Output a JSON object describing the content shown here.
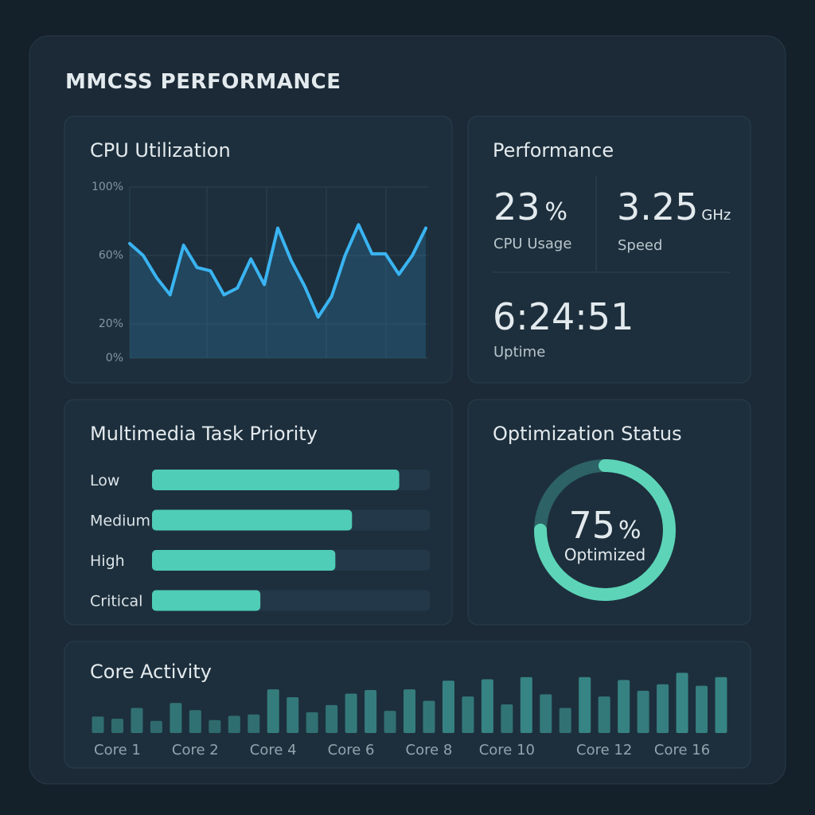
{
  "title": "MMCSS PERFORMANCE",
  "performance": {
    "title": "Performance",
    "stats": [
      {
        "value": 23,
        "unit": "%",
        "label": "CPU Usage"
      },
      {
        "value": 3.25,
        "unit": "GHz",
        "label": "Speed"
      },
      {
        "value": "6:24:51",
        "label": "Uptime"
      }
    ]
  },
  "chart_data": [
    {
      "type": "line",
      "title": "CPU Utilization",
      "values": [
        67,
        60,
        47,
        37,
        66,
        53,
        51,
        37,
        41,
        58,
        43,
        76,
        57,
        42,
        24,
        36,
        60,
        78,
        61,
        61,
        49,
        60,
        76
      ],
      "color": "#3ab4f2",
      "ylim": [
        0,
        100
      ],
      "yticks": [
        {
          "value": 0,
          "label": "0%"
        },
        {
          "value": 20,
          "label": "20%"
        },
        {
          "value": 60,
          "label": "60%"
        },
        {
          "value": 100,
          "label": "100%"
        }
      ],
      "grid": true
    },
    {
      "type": "hbar",
      "title": "Multimedia Task Priority",
      "categories": [
        "Low",
        "Medium",
        "High",
        "Critical"
      ],
      "values": [
        89,
        72,
        66,
        39
      ],
      "xlim": [
        0,
        100
      ],
      "color": "#4fcdb6"
    },
    {
      "type": "donut",
      "title": "Optimization Status",
      "value": 75,
      "unit": "%",
      "label": "Optimized",
      "color": "#5dd4b8",
      "track_color": "#2d6266"
    },
    {
      "type": "bar",
      "title": "Core Activity",
      "categories": [
        null,
        "Core 1",
        null,
        null,
        null,
        "Core 2",
        null,
        null,
        null,
        "Core 4",
        null,
        null,
        null,
        "Core 6",
        null,
        null,
        null,
        "Core 8",
        null,
        null,
        null,
        "Core 10",
        null,
        null,
        null,
        null,
        "Core 12",
        null,
        null,
        null,
        "Core 16",
        null,
        null
      ],
      "values": [
        23,
        20,
        35,
        17,
        42,
        32,
        18,
        24,
        26,
        61,
        50,
        29,
        39,
        55,
        60,
        31,
        61,
        45,
        73,
        51,
        75,
        40,
        78,
        54,
        35,
        78,
        51,
        74,
        59,
        68,
        84,
        66,
        78
      ],
      "ylim": [
        0,
        100
      ],
      "color": "#3a8e8c"
    }
  ]
}
